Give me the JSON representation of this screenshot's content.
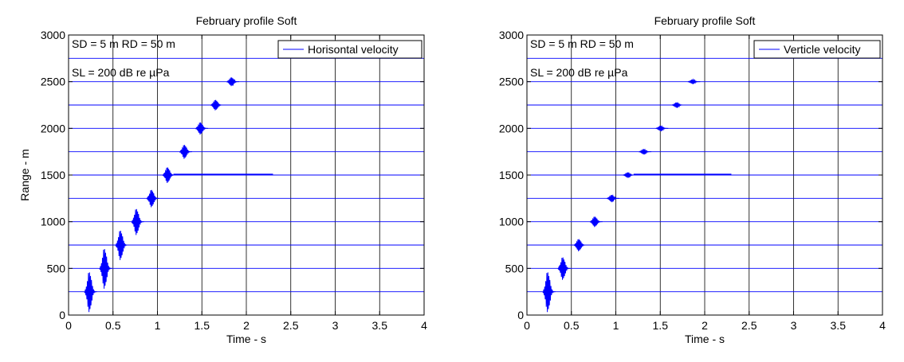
{
  "chart_data": [
    {
      "type": "line",
      "title": "February profile Soft",
      "xlabel": "Time - s",
      "ylabel": "Range - m",
      "xlim": [
        0,
        4
      ],
      "ylim": [
        0,
        3000
      ],
      "xticks": [
        "0",
        "0.5",
        "1",
        "1.5",
        "2",
        "2.5",
        "3",
        "3.5",
        "4"
      ],
      "yticks": [
        "0",
        "500",
        "1000",
        "1500",
        "2000",
        "2500",
        "3000"
      ],
      "grid": true,
      "legend_position": "top-right",
      "annotations": [
        "SD = 5 m  RD = 50 m",
        "SL = 200 dB re µPa"
      ],
      "series": [
        {
          "name": "Horisontal velocity",
          "color": "#0000ff",
          "ranges": [
            250,
            500,
            750,
            1000,
            1250,
            1500,
            1750,
            2000,
            2250,
            2500
          ],
          "arrival_times": [
            0.2,
            0.37,
            0.55,
            0.73,
            0.9,
            1.08,
            1.27,
            1.45,
            1.62,
            1.8
          ],
          "peak_amplitudes_m": [
            230,
            230,
            170,
            150,
            100,
            90,
            80,
            70,
            60,
            50
          ]
        }
      ]
    },
    {
      "type": "line",
      "title": "February profile Soft",
      "xlabel": "Time - s",
      "ylabel": "",
      "xlim": [
        0,
        4
      ],
      "ylim": [
        0,
        3000
      ],
      "xticks": [
        "0",
        "0.5",
        "1",
        "1.5",
        "2",
        "2.5",
        "3",
        "3.5",
        "4"
      ],
      "yticks": [
        "0",
        "500",
        "1000",
        "1500",
        "2000",
        "2500",
        "3000"
      ],
      "grid": true,
      "legend_position": "top-right",
      "annotations": [
        "SD = 5 m  RD = 50 m",
        "SL = 200 dB re µPa"
      ],
      "series": [
        {
          "name": "Verticle velocity",
          "color": "#0000ff",
          "ranges": [
            250,
            500,
            750,
            1000,
            1250,
            1500,
            1750,
            2000,
            2250,
            2500
          ],
          "arrival_times": [
            0.2,
            0.37,
            0.55,
            0.73,
            0.92,
            1.1,
            1.28,
            1.47,
            1.65,
            1.83
          ],
          "peak_amplitudes_m": [
            230,
            130,
            70,
            60,
            40,
            30,
            30,
            30,
            30,
            25
          ]
        }
      ]
    }
  ]
}
